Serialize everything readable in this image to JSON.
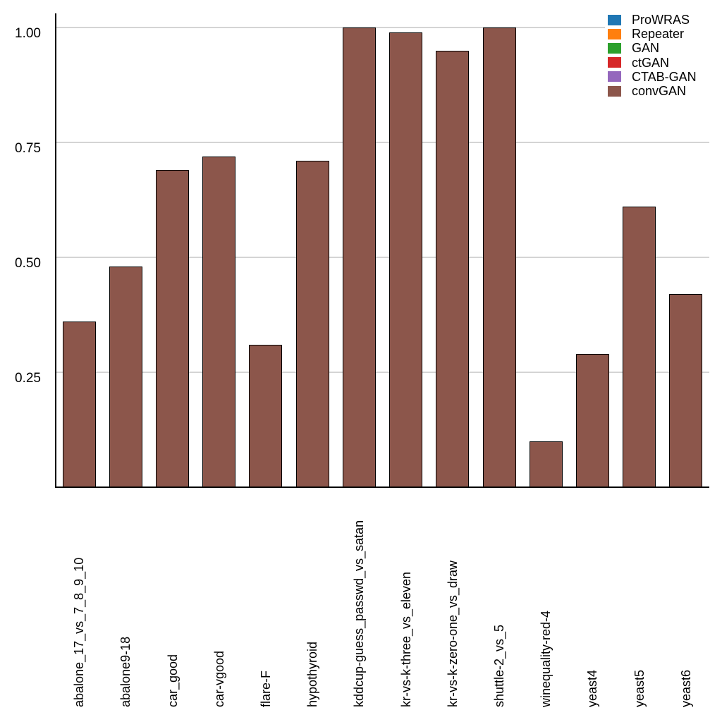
{
  "chart_data": {
    "type": "bar",
    "title": "",
    "xlabel": "",
    "ylabel": "",
    "categories": [
      "abalone_17_vs_7_8_9_10",
      "abalone9-18",
      "car_good",
      "car-vgood",
      "flare-F",
      "hypothyroid",
      "kddcup-guess_passwd_vs_satan",
      "kr-vs-k-three_vs_eleven",
      "kr-vs-k-zero-one_vs_draw",
      "shuttle-2_vs_5",
      "winequality-red-4",
      "yeast4",
      "yeast5",
      "yeast6"
    ],
    "series": [
      {
        "name": "convGAN",
        "color": "#8c564b",
        "values": [
          0.36,
          0.48,
          0.69,
          0.72,
          0.31,
          0.71,
          1.0,
          0.99,
          0.95,
          1.0,
          0.1,
          0.29,
          0.61,
          0.42
        ]
      }
    ],
    "ylim": [
      0,
      1.03
    ],
    "yticks": [
      0.25,
      0.5,
      0.75,
      1.0
    ],
    "ytick_labels": [
      "0.25",
      "0.50",
      "0.75",
      "1.00"
    ],
    "grid": "horizontal-major-only",
    "panel_background": "#ffffff",
    "gridline_color": "#d4d4d4",
    "axis_line_color": "#000000",
    "bar_edge_color": "#000000",
    "legend": {
      "position": "top-right",
      "frame": false,
      "entries": [
        {
          "label": "ProWRAS",
          "color": "#1f77b4"
        },
        {
          "label": "Repeater",
          "color": "#ff7f0e"
        },
        {
          "label": "GAN",
          "color": "#2ca02c"
        },
        {
          "label": "ctGAN",
          "color": "#d62728"
        },
        {
          "label": "CTAB-GAN",
          "color": "#9467bd"
        },
        {
          "label": "convGAN",
          "color": "#8c564b"
        }
      ]
    }
  }
}
